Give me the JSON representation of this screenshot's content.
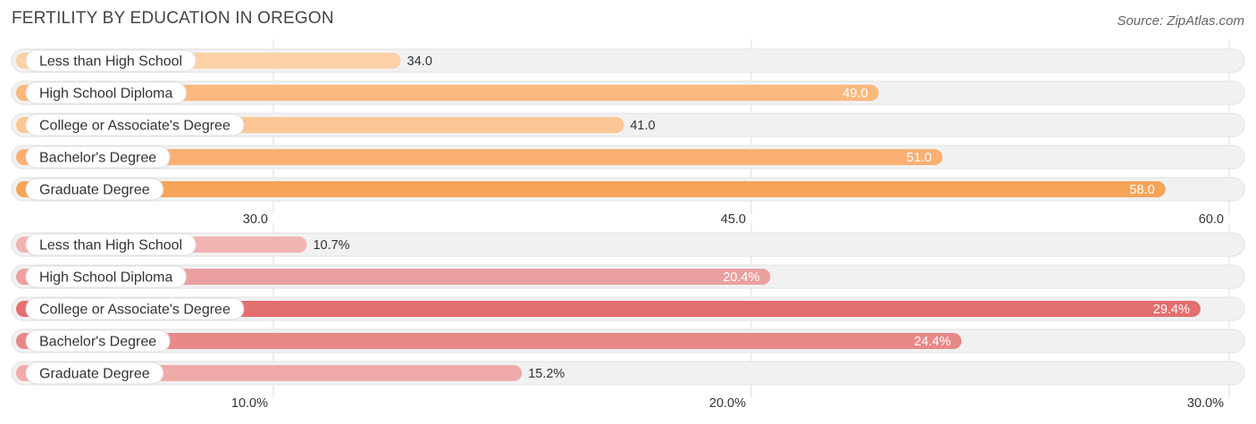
{
  "title": "FERTILITY BY EDUCATION IN OREGON",
  "source": "Source: ZipAtlas.com",
  "chart_data": [
    {
      "type": "bar",
      "orientation": "horizontal",
      "categories": [
        "Less than High School",
        "High School Diploma",
        "College or Associate's Degree",
        "Bachelor's Degree",
        "Graduate Degree"
      ],
      "values": [
        34.0,
        49.0,
        41.0,
        51.0,
        58.0
      ],
      "value_labels": [
        "34.0",
        "49.0",
        "41.0",
        "51.0",
        "58.0"
      ],
      "xlim": [
        30.0,
        60.0
      ],
      "xticks": [
        30.0,
        45.0,
        60.0
      ],
      "xtick_labels": [
        "30.0",
        "45.0",
        "60.0"
      ],
      "grid": true,
      "colors": [
        "#fcd1a8",
        "#fbb97e",
        "#fcc794",
        "#f9b072",
        "#f6a459"
      ]
    },
    {
      "type": "bar",
      "orientation": "horizontal",
      "categories": [
        "Less than High School",
        "High School Diploma",
        "College or Associate's Degree",
        "Bachelor's Degree",
        "Graduate Degree"
      ],
      "values": [
        10.7,
        20.4,
        29.4,
        24.4,
        15.2
      ],
      "value_labels": [
        "10.7%",
        "20.4%",
        "29.4%",
        "24.4%",
        "15.2%"
      ],
      "xlim": [
        10.0,
        30.0
      ],
      "xticks": [
        10.0,
        20.0,
        30.0
      ],
      "xtick_labels": [
        "10.0%",
        "20.0%",
        "30.0%"
      ],
      "grid": true,
      "colors": [
        "#f2b3b3",
        "#eba0a0",
        "#e36f6f",
        "#e88888",
        "#f0aaaa"
      ]
    }
  ]
}
